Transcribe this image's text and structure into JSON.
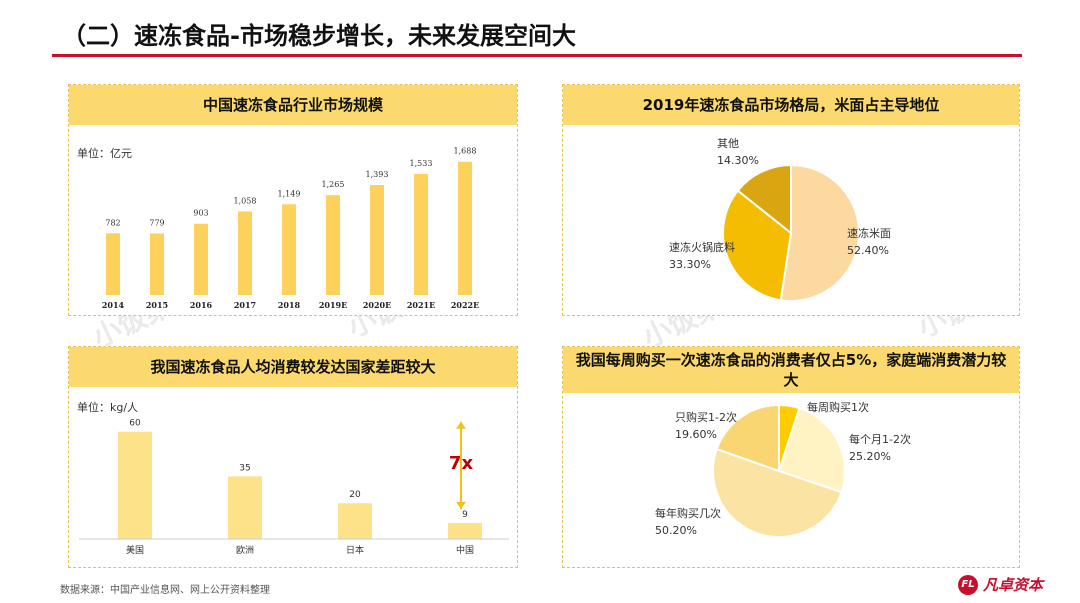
{
  "page": {
    "title": "（二）速冻食品-市场稳步增长，未来发展空间大",
    "source": "数据来源：中国产业信息网、网上公开资料整理",
    "logo_mark": "FL",
    "logo_text": "凡卓资本",
    "watermark": "小饭桌",
    "colors": {
      "accent": "#c8102e",
      "header": "#fbd96e",
      "bar": "#fcd25c",
      "bar_light": "#fde28a",
      "pie1": "#fcd9a0",
      "pie2": "#f5bd02",
      "pie3": "#d9a510",
      "pie4": "#ffcc00",
      "pie5": "#fff3c4",
      "pie6": "#fbe3a3",
      "pie7": "#fad673"
    }
  },
  "chart_data": [
    {
      "type": "bar",
      "title": "中国速冻食品行业市场规模",
      "unit": "单位：亿元",
      "categories": [
        "2014",
        "2015",
        "2016",
        "2017",
        "2018",
        "2019E",
        "2020E",
        "2021E",
        "2022E"
      ],
      "values": [
        782,
        779,
        903,
        1058,
        1149,
        1265,
        1393,
        1533,
        1688
      ],
      "value_labels": [
        "782",
        "779",
        "903",
        "1,058",
        "1,149",
        "1,265",
        "1,393",
        "1,533",
        "1,688"
      ],
      "ylim": [
        0,
        1900
      ],
      "grid": false,
      "legend": "none"
    },
    {
      "type": "pie",
      "title": "2019年速冻食品市场格局，米面占主导地位",
      "labels": [
        "速冻米面",
        "速冻火锅底料",
        "其他"
      ],
      "values": [
        52.4,
        33.3,
        14.3
      ],
      "value_labels": [
        "52.40%",
        "33.30%",
        "14.30%"
      ],
      "colors": [
        "#fcd9a0",
        "#f5bd02",
        "#d9a510"
      ],
      "legend": "none"
    },
    {
      "type": "bar",
      "title": "我国速冻食品人均消费较发达国家差距较大",
      "unit": "单位：kg/人",
      "categories": [
        "美国",
        "欧洲",
        "日本",
        "中国"
      ],
      "values": [
        60,
        35,
        20,
        9
      ],
      "value_labels": [
        "60",
        "35",
        "20",
        "9"
      ],
      "ylim": [
        0,
        66
      ],
      "annotation": "7x",
      "grid": false,
      "legend": "none"
    },
    {
      "type": "pie",
      "title": "我国每周购买一次速冻食品的消费者仅占5%，家庭端消费潜力较大",
      "labels": [
        "每周购买1次",
        "每个月1-2次",
        "每年购买几次",
        "只购买1-2次"
      ],
      "values": [
        5,
        25.2,
        50.2,
        19.6
      ],
      "value_labels": [
        "5%",
        "25.20%",
        "50.20%",
        "19.60%"
      ],
      "colors": [
        "#ffcc00",
        "#fff3c4",
        "#fbe3a3",
        "#fad673"
      ],
      "legend": "none"
    }
  ]
}
